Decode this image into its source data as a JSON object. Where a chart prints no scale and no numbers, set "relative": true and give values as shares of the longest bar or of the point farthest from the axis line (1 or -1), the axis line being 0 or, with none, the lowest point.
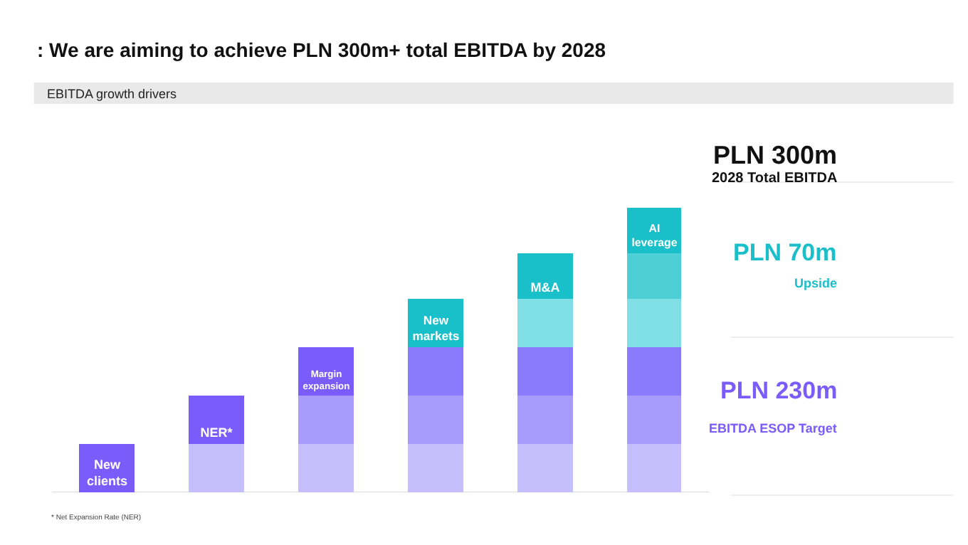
{
  "chart_data": [
    {
      "type": "bar",
      "title": ": We are aiming to achieve PLN 300m+ total EBITDA by 2028",
      "subtitle": "EBITDA growth drivers",
      "categories": [
        null,
        null,
        null,
        null,
        null,
        null
      ],
      "stacked": true,
      "relative": true,
      "legend": false,
      "series": [
        {
          "name": "New clients",
          "values": [
            0.17,
            0.17,
            0.17,
            0.17,
            0.17,
            0.17
          ],
          "colors": [
            "#7a5cfa",
            "#c6bffd",
            "#c6bffd",
            "#c6bffd",
            "#c6bffd",
            "#c6bffd"
          ]
        },
        {
          "name": "NER*",
          "values": [
            null,
            0.17,
            0.17,
            0.17,
            0.17,
            0.17
          ],
          "colors": [
            null,
            "#7a5cfa",
            "#a89bfb",
            "#a89bfb",
            "#a89bfb",
            "#a89bfb"
          ]
        },
        {
          "name": "Margin expansion",
          "values": [
            null,
            null,
            0.17,
            0.17,
            0.17,
            0.17
          ],
          "colors": [
            null,
            null,
            "#7a5cfa",
            "#8a7afc",
            "#8a7afc",
            "#8a7afc"
          ]
        },
        {
          "name": "New markets",
          "values": [
            null,
            null,
            null,
            0.17,
            0.17,
            0.17
          ],
          "colors": [
            null,
            null,
            null,
            "#19bfc9",
            "#80dfe4",
            "#80dfe4"
          ]
        },
        {
          "name": "M&A",
          "values": [
            null,
            null,
            null,
            null,
            0.16,
            0.16
          ],
          "colors": [
            null,
            null,
            null,
            null,
            "#19bfc9",
            "#4ecfd6"
          ]
        },
        {
          "name": "AI leverage",
          "values": [
            null,
            null,
            null,
            null,
            null,
            0.16
          ],
          "colors": [
            null,
            null,
            null,
            null,
            null,
            "#19bfc9"
          ]
        }
      ],
      "annotations": [
        "* Net Expansion Rate (NER)"
      ]
    },
    {
      "type": "other",
      "title": "PLN 300m",
      "subtitle": "2028 Total EBITDA",
      "annotations": [
        "PLN 70m",
        "Upside",
        "PLN 230m",
        "EBITDA ESOP Target"
      ],
      "colors": [
        "#1bbfc9",
        "#1bbfc9",
        "#7a5cfa",
        "#7a5cfa"
      ]
    }
  ]
}
